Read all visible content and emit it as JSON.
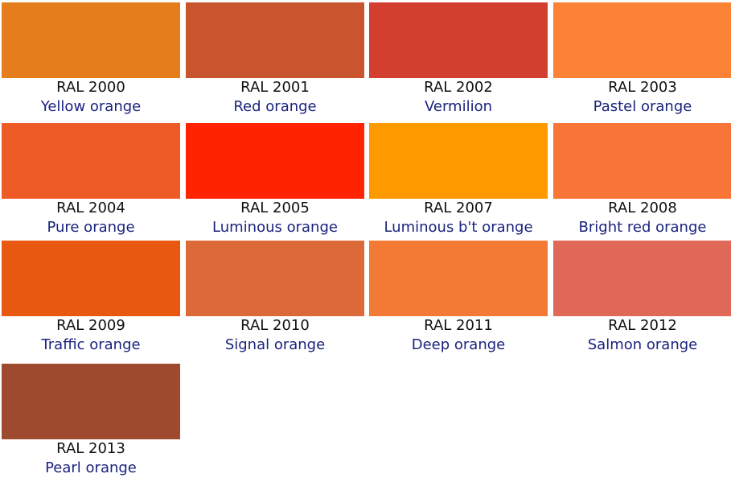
{
  "colors": [
    {
      "code": "RAL 2000",
      "name": "Yellow orange",
      "hex": "#E57D1D"
    },
    {
      "code": "RAL 2001",
      "name": "Red orange",
      "hex": "#C8552E"
    },
    {
      "code": "RAL 2002",
      "name": "Vermilion",
      "hex": "#D23F2E"
    },
    {
      "code": "RAL 2003",
      "name": "Pastel orange",
      "hex": "#FC8236"
    },
    {
      "code": "RAL 2004",
      "name": "Pure orange",
      "hex": "#EF5B27"
    },
    {
      "code": "RAL 2005",
      "name": "Luminous orange",
      "hex": "#FF2300"
    },
    {
      "code": "RAL 2007",
      "name": "Luminous b't orange",
      "hex": "#FE9A00"
    },
    {
      "code": "RAL 2008",
      "name": "Bright red orange",
      "hex": "#F67537"
    },
    {
      "code": "RAL 2009",
      "name": "Traffic orange",
      "hex": "#E95811"
    },
    {
      "code": "RAL 2010",
      "name": "Signal orange",
      "hex": "#DC6938"
    },
    {
      "code": "RAL 2011",
      "name": "Deep orange",
      "hex": "#F37A35"
    },
    {
      "code": "RAL 2012",
      "name": "Salmon orange",
      "hex": "#E06857"
    },
    {
      "code": "RAL 2013",
      "name": "Pearl orange",
      "hex": "#9E4A2F"
    }
  ]
}
